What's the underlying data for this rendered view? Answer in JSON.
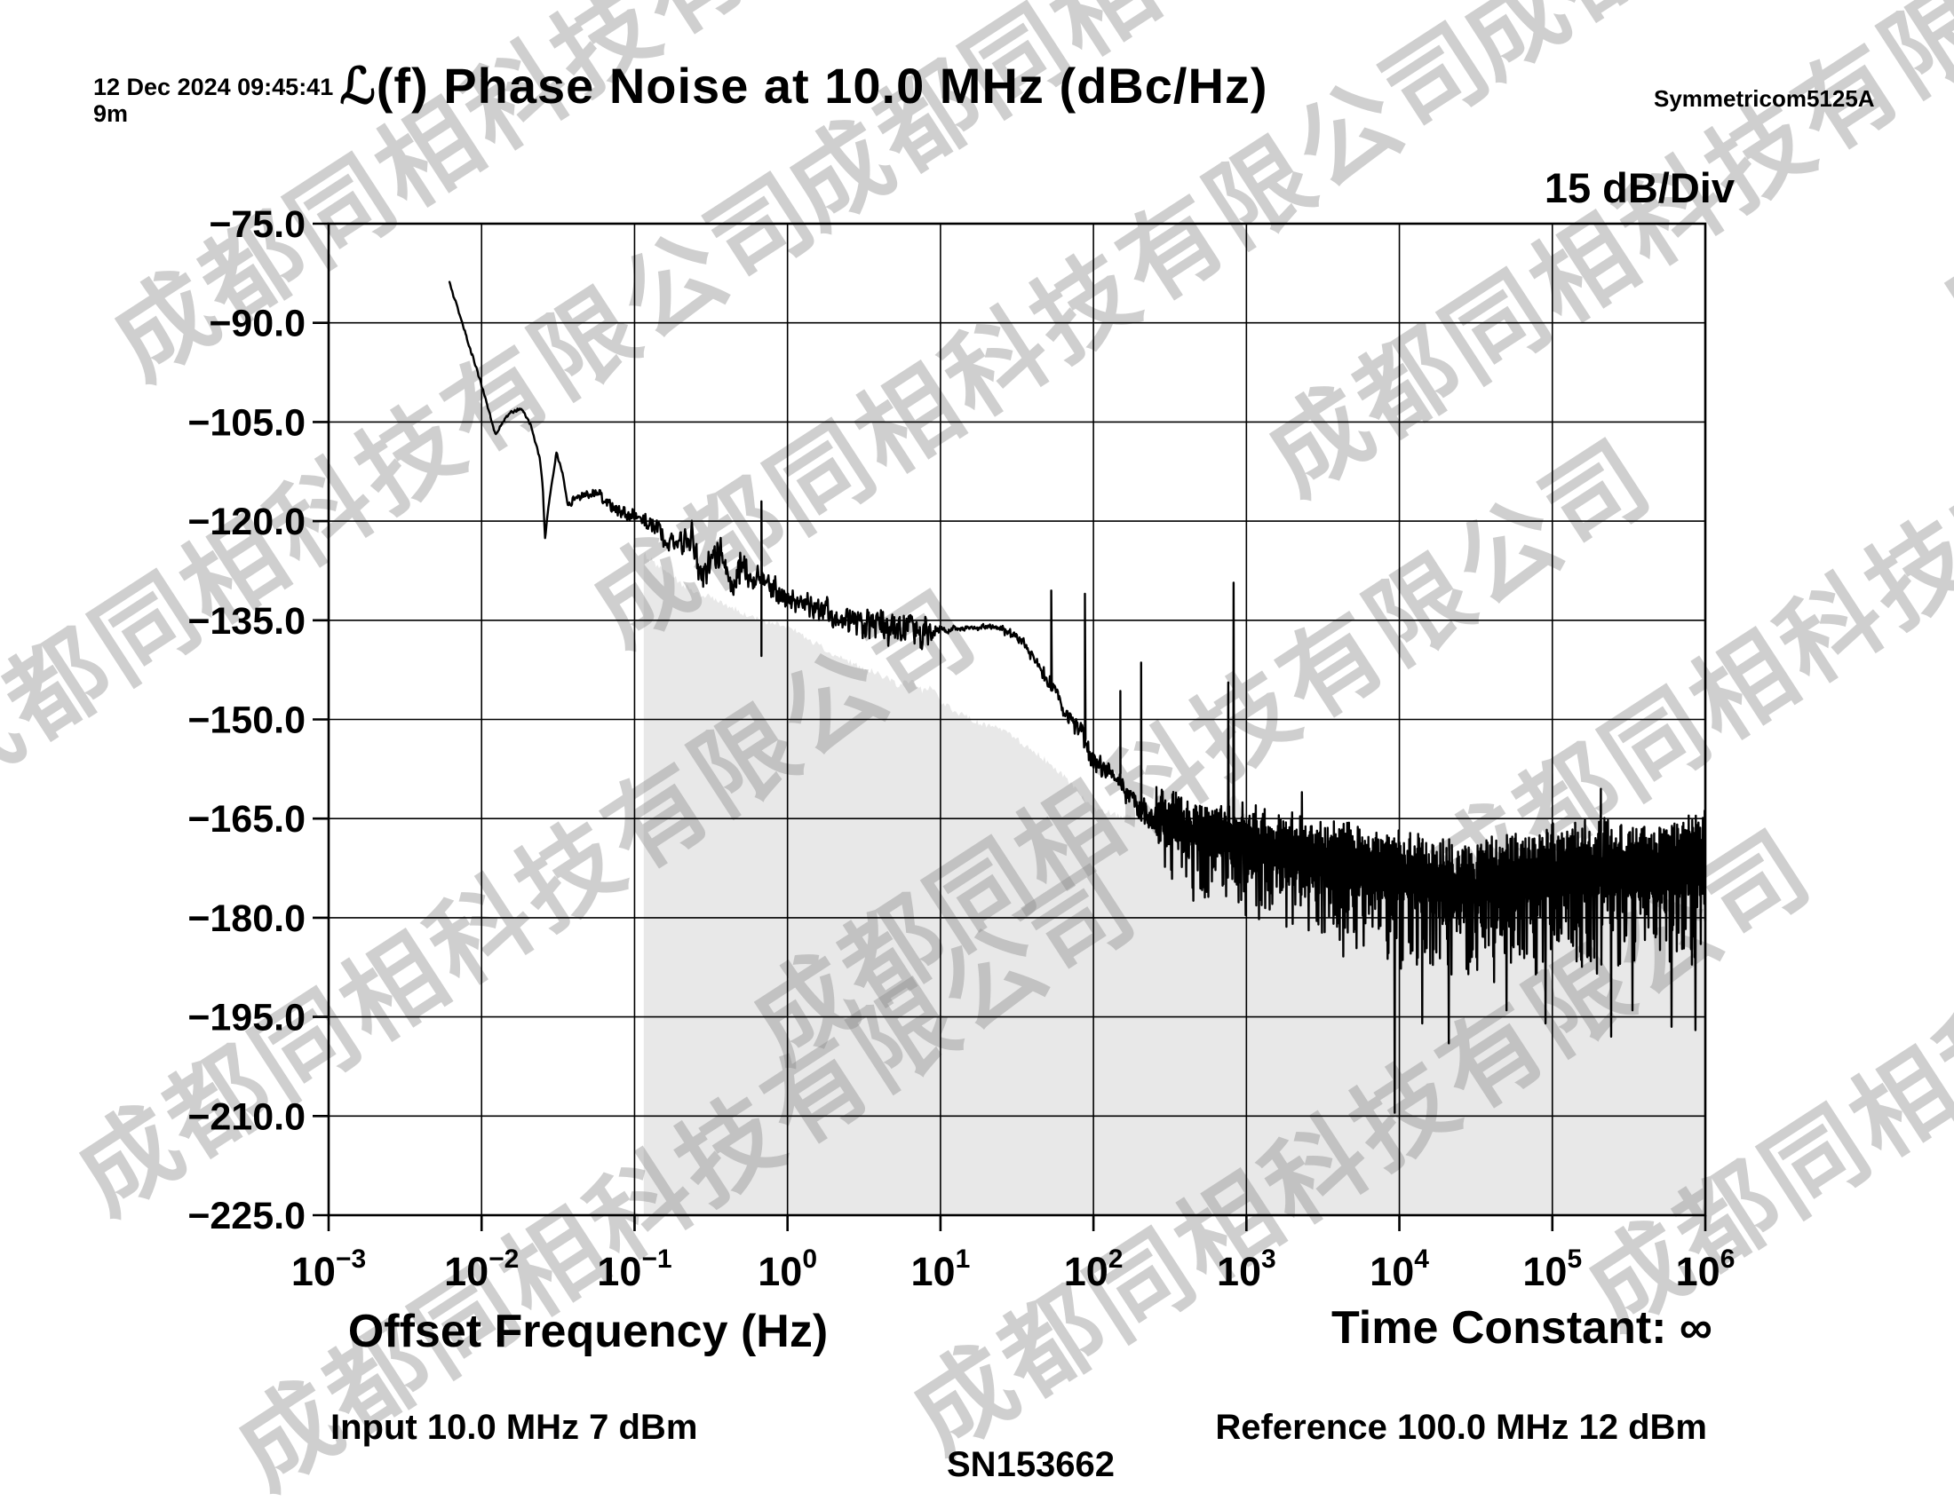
{
  "header": {
    "timestamp": "12 Dec 2024 09:45:41",
    "elapsed": "9m",
    "instrument": "Symmetricom5125A",
    "title": "ℒ(f) Phase Noise at 10.0 MHz (dBc/Hz)",
    "scale_label": "15 dB/Div"
  },
  "footer": {
    "xlabel": "Offset Frequency (Hz)",
    "time_constant": "Time Constant: ∞",
    "input": "Input 10.0 MHz 7 dBm",
    "reference": "Reference 100.0 MHz 12 dBm",
    "serial": "SN153662"
  },
  "watermark": {
    "text": "成都同相科技有限公司",
    "color": "#8a8a8a",
    "opacity": 0.4
  },
  "chart_data": {
    "type": "line",
    "title": "ℒ(f) Phase Noise at 10.0 MHz (dBc/Hz)",
    "xlabel": "Offset Frequency (Hz)",
    "ylabel": "dBc/Hz",
    "x_scale": "log",
    "x_range_hz": [
      0.001,
      1000000
    ],
    "y_range_db": [
      -225,
      -75
    ],
    "db_per_div": 15,
    "grid": true,
    "y_ticks": [
      "−75.0",
      "−90.0",
      "−105.0",
      "−120.0",
      "−135.0",
      "−150.0",
      "−165.0",
      "−180.0",
      "−195.0",
      "−210.0",
      "−225.0"
    ],
    "x_ticks": [
      {
        "base": "10",
        "exp": "−3"
      },
      {
        "base": "10",
        "exp": "−2"
      },
      {
        "base": "10",
        "exp": "−1"
      },
      {
        "base": "10",
        "exp": "0"
      },
      {
        "base": "10",
        "exp": "1"
      },
      {
        "base": "10",
        "exp": "2"
      },
      {
        "base": "10",
        "exp": "3"
      },
      {
        "base": "10",
        "exp": "4"
      },
      {
        "base": "10",
        "exp": "5"
      },
      {
        "base": "10",
        "exp": "6"
      }
    ],
    "trace_mean_log10f_db": [
      [
        -2.21,
        -84.0
      ],
      [
        -2.12,
        -90.5
      ],
      [
        -1.98,
        -101.0
      ],
      [
        -1.91,
        -106.8
      ],
      [
        -1.82,
        -103.7
      ],
      [
        -1.74,
        -102.9
      ],
      [
        -1.68,
        -105.3
      ],
      [
        -1.62,
        -110.5
      ],
      [
        -1.6,
        -114.5
      ],
      [
        -1.585,
        -122.8
      ],
      [
        -1.565,
        -118.0
      ],
      [
        -1.51,
        -109.6
      ],
      [
        -1.47,
        -113.0
      ],
      [
        -1.435,
        -117.8
      ],
      [
        -1.39,
        -116.6
      ],
      [
        -1.33,
        -115.9
      ],
      [
        -1.24,
        -115.9
      ],
      [
        -1.155,
        -117.8
      ],
      [
        -1.08,
        -118.7
      ],
      [
        -1.01,
        -119.4
      ],
      [
        -0.91,
        -120.4
      ],
      [
        -0.845,
        -120.9
      ],
      [
        -0.79,
        -124.0
      ],
      [
        -0.755,
        -122.6
      ],
      [
        -0.7,
        -123.6
      ],
      [
        -0.63,
        -121.8
      ],
      [
        -0.56,
        -128.5
      ],
      [
        -0.5,
        -125.5
      ],
      [
        -0.43,
        -124.0
      ],
      [
        -0.36,
        -130.0
      ],
      [
        -0.31,
        -127.0
      ],
      [
        -0.28,
        -126.6
      ],
      [
        -0.22,
        -128.5
      ],
      [
        -0.17,
        -128.8
      ],
      [
        -0.1,
        -130.0
      ],
      [
        0.0,
        -131.8
      ],
      [
        0.12,
        -132.6
      ],
      [
        0.28,
        -133.8
      ],
      [
        0.4,
        -135.0
      ],
      [
        0.5,
        -135.2
      ],
      [
        0.6,
        -135.2
      ],
      [
        0.66,
        -136.0
      ],
      [
        0.76,
        -135.8
      ],
      [
        0.85,
        -136.6
      ],
      [
        0.93,
        -136.6
      ],
      [
        1.0,
        -136.5
      ],
      [
        1.1,
        -136.3
      ],
      [
        1.2,
        -136.2
      ],
      [
        1.32,
        -135.9
      ],
      [
        1.41,
        -136.3
      ],
      [
        1.5,
        -137.6
      ],
      [
        1.55,
        -138.6
      ],
      [
        1.62,
        -140.8
      ],
      [
        1.7,
        -143.9
      ],
      [
        1.76,
        -145.7
      ],
      [
        1.81,
        -148.8
      ],
      [
        1.88,
        -150.8
      ],
      [
        1.95,
        -153.5
      ],
      [
        2.0,
        -156.8
      ],
      [
        2.06,
        -157.3
      ],
      [
        2.11,
        -158.0
      ],
      [
        2.21,
        -160.9
      ],
      [
        2.29,
        -163.4
      ],
      [
        2.4,
        -165.0
      ],
      [
        2.48,
        -166.0
      ],
      [
        2.6,
        -167.2
      ],
      [
        2.78,
        -168.3
      ],
      [
        3.0,
        -169.3
      ],
      [
        3.3,
        -171.0
      ],
      [
        3.6,
        -172.4
      ],
      [
        3.9,
        -173.4
      ],
      [
        4.18,
        -175.3
      ],
      [
        4.48,
        -176.0
      ],
      [
        4.78,
        -175.3
      ],
      [
        5.0,
        -174.5
      ],
      [
        5.3,
        -174.0
      ],
      [
        5.6,
        -174.0
      ],
      [
        5.85,
        -173.5
      ],
      [
        6.0,
        -173.0
      ]
    ],
    "noise_amp_log10f_amp": [
      [
        -2.21,
        0.15
      ],
      [
        -1.6,
        0.25
      ],
      [
        -1.3,
        0.7
      ],
      [
        -1.05,
        1.0
      ],
      [
        -0.85,
        1.3
      ],
      [
        -0.65,
        2.0
      ],
      [
        -0.5,
        2.4
      ],
      [
        -0.35,
        2.4
      ],
      [
        -0.2,
        2.2
      ],
      [
        0.0,
        1.7
      ],
      [
        0.3,
        2.1
      ],
      [
        0.6,
        2.5
      ],
      [
        0.9,
        2.1
      ],
      [
        1.02,
        0.5
      ],
      [
        1.15,
        0.35
      ],
      [
        1.3,
        0.35
      ],
      [
        1.42,
        0.6
      ],
      [
        1.6,
        0.9
      ],
      [
        1.8,
        1.1
      ],
      [
        2.0,
        1.5
      ],
      [
        2.2,
        2.0
      ],
      [
        2.4,
        2.8
      ]
    ],
    "noise_band_log10f_up_down": [
      [
        2.4,
        4.5,
        7.5
      ],
      [
        2.7,
        5.2,
        9.0
      ],
      [
        3.0,
        5.5,
        10.0
      ],
      [
        3.3,
        6.0,
        11.0
      ],
      [
        3.7,
        6.5,
        12.5
      ],
      [
        4.2,
        7.0,
        13.0
      ],
      [
        4.7,
        7.5,
        13.5
      ],
      [
        5.2,
        8.0,
        14.0
      ],
      [
        5.6,
        8.3,
        14.3
      ],
      [
        6.0,
        8.5,
        14.5
      ]
    ],
    "spurs_up_f_db": [
      [
        0.675,
        -117.0
      ],
      [
        53,
        -130.5
      ],
      [
        88,
        -131.0
      ],
      [
        150,
        -145.7
      ],
      [
        205,
        -141.4
      ],
      [
        760,
        -144.4
      ],
      [
        830,
        -129.3
      ],
      [
        2300,
        -161.0
      ],
      [
        207000,
        -160.5
      ]
    ],
    "spikes_down_f_db": [
      [
        0.675,
        -140.4
      ],
      [
        9300,
        -209.5
      ],
      [
        14000,
        -196.0
      ],
      [
        21000,
        -199.0
      ],
      [
        50000,
        -194.0
      ],
      [
        90000,
        -196.0
      ],
      [
        240000,
        -198.0
      ],
      [
        330000,
        -194.0
      ],
      [
        600000,
        -196.5
      ],
      [
        850000,
        -197.0
      ]
    ],
    "noise_floor_region_start_log10f": -0.94,
    "noise_floor_region_log10f_db": [
      [
        -0.94,
        -125.0
      ],
      [
        -0.86,
        -126.5
      ],
      [
        -0.76,
        -128.0
      ],
      [
        -0.7,
        -129.5
      ],
      [
        -0.62,
        -130.5
      ],
      [
        -0.55,
        -131.6
      ],
      [
        -0.5,
        -131.2
      ],
      [
        -0.44,
        -132.4
      ],
      [
        -0.36,
        -133.0
      ],
      [
        -0.3,
        -133.8
      ],
      [
        -0.21,
        -134.8
      ],
      [
        -0.1,
        -135.4
      ],
      [
        0.0,
        -135.8
      ],
      [
        0.15,
        -138.0
      ],
      [
        0.27,
        -139.7
      ],
      [
        0.47,
        -142.0
      ],
      [
        0.66,
        -143.7
      ],
      [
        0.72,
        -144.8
      ],
      [
        0.81,
        -144.2
      ],
      [
        0.88,
        -145.6
      ],
      [
        0.93,
        -145.0
      ],
      [
        1.0,
        -147.2
      ],
      [
        1.11,
        -149.0
      ],
      [
        1.26,
        -150.5
      ],
      [
        1.41,
        -151.7
      ],
      [
        1.6,
        -154.5
      ],
      [
        1.78,
        -158.0
      ],
      [
        2.0,
        -163.6
      ],
      [
        2.18,
        -164.6
      ],
      [
        2.31,
        -164.8
      ],
      [
        2.48,
        -166.5
      ],
      [
        2.7,
        -168.3
      ],
      [
        2.82,
        -166.0
      ],
      [
        2.88,
        -163.0
      ],
      [
        2.92,
        -160.8
      ],
      [
        2.97,
        -163.5
      ],
      [
        3.05,
        -167.0
      ],
      [
        3.18,
        -169.5
      ],
      [
        3.36,
        -167.8
      ],
      [
        3.49,
        -170.5
      ],
      [
        3.6,
        -172.0
      ],
      [
        3.95,
        -174.5
      ],
      [
        4.3,
        -176.0
      ],
      [
        4.7,
        -175.5
      ],
      [
        5.0,
        -173.8
      ],
      [
        5.2,
        -174.8
      ],
      [
        5.32,
        -172.0
      ],
      [
        5.45,
        -174.0
      ],
      [
        5.5,
        -176.0
      ],
      [
        5.7,
        -174.5
      ],
      [
        5.85,
        -173.8
      ],
      [
        6.0,
        -175.0
      ]
    ],
    "colors": {
      "trace": "#000000",
      "grid": "#000000",
      "axis": "#000000",
      "noise_floor_fill": "#e8e8e8",
      "background": "#ffffff"
    }
  }
}
